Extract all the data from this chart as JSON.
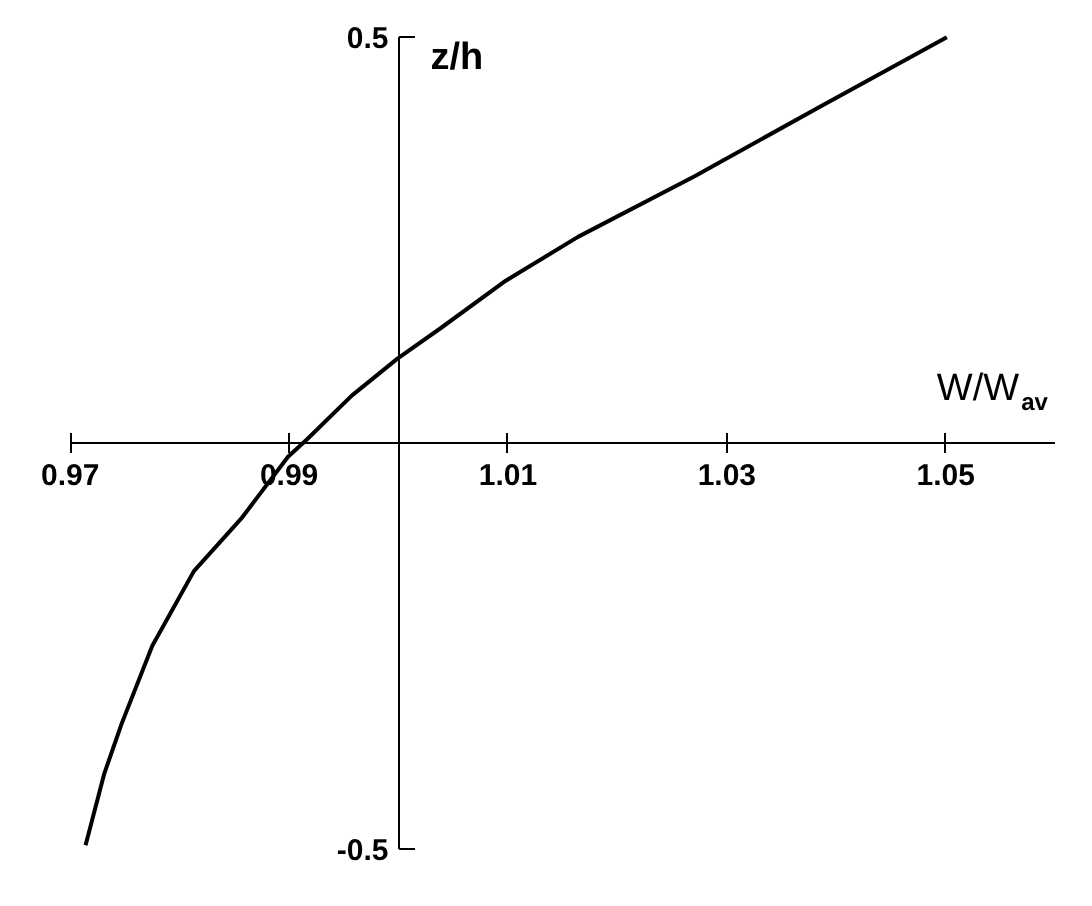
{
  "chart_data": {
    "type": "line",
    "xlabel": "W/W$_{av}$",
    "ylabel": "z/h",
    "x": [
      0.9714,
      0.9731,
      0.9747,
      0.9775,
      0.9813,
      0.9857,
      0.9899,
      0.9916,
      0.9957,
      0.9999,
      1.0039,
      1.0098,
      1.0164,
      1.0271,
      1.0383,
      1.0501
    ],
    "series": [
      {
        "color": "#000000",
        "values": [
          -0.496,
          -0.408,
          -0.346,
          -0.25,
          -0.158,
          -0.092,
          -0.017,
          0.004,
          0.058,
          0.104,
          0.142,
          0.2,
          0.254,
          0.329,
          0.413,
          0.5
        ]
      }
    ],
    "xlim": [
      0.97,
      1.06
    ],
    "ylim": [
      -0.5,
      0.5
    ],
    "xticks": [
      0.97,
      0.99,
      1.01,
      1.03,
      1.05
    ],
    "yticks": [
      {
        "value": -0.5,
        "label": "-0.5"
      },
      0.5
    ],
    "grid": false,
    "marker": "none",
    "line_style": "solid"
  }
}
